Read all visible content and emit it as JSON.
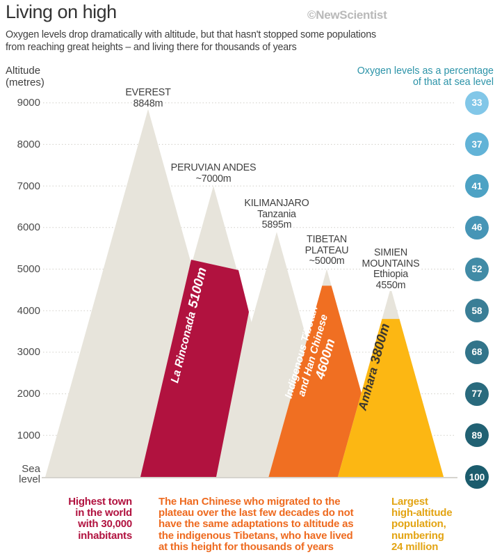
{
  "header": {
    "title": "Living on high",
    "credit": "©NewScientist",
    "subtitle_line1": "Oxygen levels drop dramatically with altitude, but that hasn't stopped some populations",
    "subtitle_line2": "from reaching great heights – and living there for thousands of years"
  },
  "axis": {
    "title_line1": "Altitude",
    "title_line2": "(metres)"
  },
  "oxygen_axis": {
    "header_line1": "Oxygen levels as a percentage",
    "header_line2": "of that at sea level"
  },
  "colors": {
    "mountain_gray": "#e7e4db",
    "grid": "#d0cec7",
    "sea_line": "#c8c5be",
    "crimson": "#b1123f",
    "orange": "#f06f22",
    "yellow": "#fcb713",
    "note_crimson": "#b1123f",
    "note_orange": "#ee6a1f",
    "note_yellow": "#e3a413"
  },
  "chart_data": {
    "type": "area",
    "title": "Living on high",
    "ylabel": "Altitude (metres)",
    "ylim": [
      0,
      9400
    ],
    "grid": true,
    "yticks": [
      9000,
      8000,
      7000,
      6000,
      5000,
      4000,
      3000,
      2000,
      1000,
      0
    ],
    "ytick_labels": [
      "9000",
      "8000",
      "7000",
      "6000",
      "5000",
      "4000",
      "3000",
      "2000",
      "1000",
      "Sea level"
    ],
    "mountains": [
      {
        "name": "Everest",
        "height_m": 8848,
        "label_lines": [
          "EVEREST",
          "8848m"
        ]
      },
      {
        "name": "Peruvian Andes",
        "height_m": 7000,
        "label_lines": [
          "PERUVIAN ANDES",
          "~7000m"
        ]
      },
      {
        "name": "Kilimanjaro",
        "country": "Tanzania",
        "height_m": 5895,
        "label_lines": [
          "KILIMANJARO",
          "Tanzania",
          "5895m"
        ]
      },
      {
        "name": "Tibetan Plateau",
        "height_m": 5000,
        "label_lines": [
          "TIBETAN",
          "PLATEAU",
          "~5000m"
        ]
      },
      {
        "name": "Simien Mountains",
        "country": "Ethiopia",
        "height_m": 4550,
        "label_lines": [
          "SIMIEN",
          "MOUNTAINS",
          "Ethiopia",
          "4550m"
        ]
      }
    ],
    "populations": [
      {
        "group_lines": [
          "La Rinconada"
        ],
        "elevation_label": "5100m",
        "elevation_m": 5100,
        "color": "#b1123f"
      },
      {
        "group_lines": [
          "Indigenous Tibetan",
          "and Han Chinese"
        ],
        "elevation_label": "4600m",
        "elevation_m": 4600,
        "color": "#f06f22"
      },
      {
        "group_lines": [
          "Amhara"
        ],
        "elevation_label": "3800m",
        "elevation_m": 3800,
        "color": "#fcb713"
      }
    ],
    "oxygen_percent_of_sea_level": [
      {
        "altitude_m": 9000,
        "percent": 33,
        "color": "#82c7e8"
      },
      {
        "altitude_m": 8000,
        "percent": 37,
        "color": "#62b3d7"
      },
      {
        "altitude_m": 7000,
        "percent": 41,
        "color": "#4da2c4"
      },
      {
        "altitude_m": 6000,
        "percent": 46,
        "color": "#4695b6"
      },
      {
        "altitude_m": 5000,
        "percent": 52,
        "color": "#418ba6"
      },
      {
        "altitude_m": 4000,
        "percent": 58,
        "color": "#3a7e96"
      },
      {
        "altitude_m": 3000,
        "percent": 68,
        "color": "#32748a"
      },
      {
        "altitude_m": 2000,
        "percent": 77,
        "color": "#296a7d"
      },
      {
        "altitude_m": 1000,
        "percent": 89,
        "color": "#216173"
      },
      {
        "altitude_m": 0,
        "percent": 100,
        "color": "#1b5c6d"
      }
    ]
  },
  "annotations": {
    "la_rinconada": {
      "lines": [
        "Highest town",
        "in the world",
        "with 30,000",
        "inhabitants"
      ]
    },
    "han_chinese": {
      "lines": [
        "The Han Chinese who migrated to the",
        "plateau over the last few decades do not",
        "have the same adaptations to altitude as",
        "the indigenous Tibetans, who have lived",
        "at this height for thousands of years"
      ]
    },
    "amhara": {
      "lines": [
        "Largest",
        "high-altitude",
        "population,",
        "numbering",
        "24 million"
      ]
    }
  }
}
